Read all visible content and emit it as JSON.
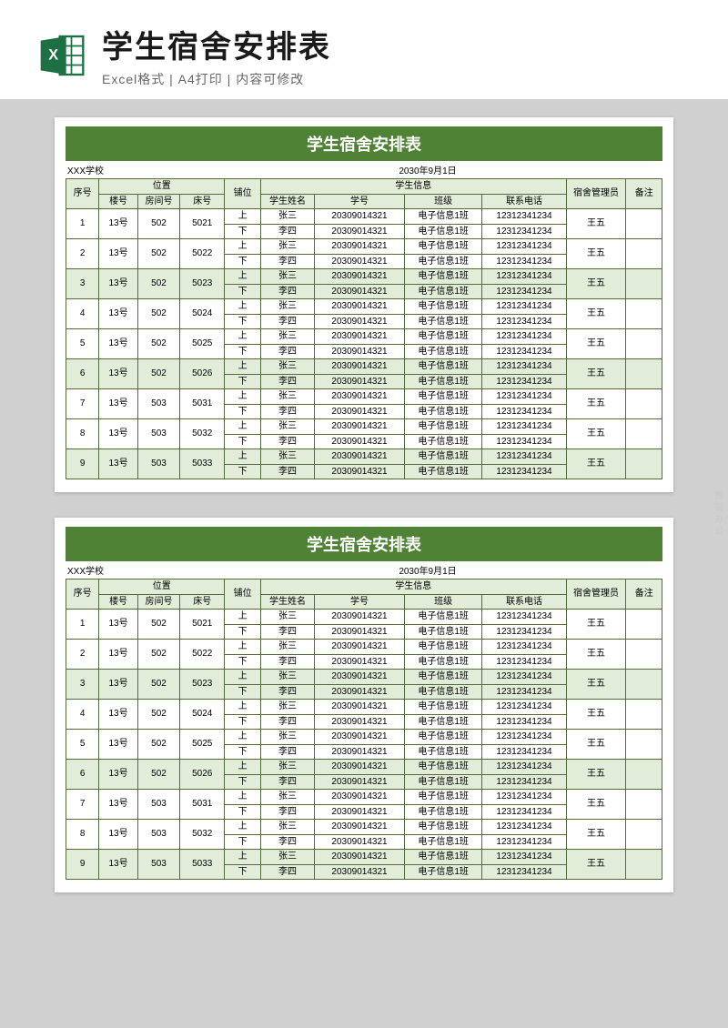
{
  "header": {
    "main_title": "学生宿舍安排表",
    "sub_title": "Excel格式 | A4打印 | 内容可修改"
  },
  "colors": {
    "title_bar_bg": "#4f8235",
    "header_cell_bg": "#e1edd8",
    "border": "#556b3e",
    "page_bg": "#d0d0d0",
    "doc_bg": "#ffffff",
    "excel_icon": "#1d7044"
  },
  "doc": {
    "title": "学生宿舍安排表",
    "school": "XXX学校",
    "date": "2030年9月1日",
    "columns": {
      "seq": "序号",
      "location_group": "位置",
      "building": "楼号",
      "room": "房间号",
      "bed": "床号",
      "bunk": "铺位",
      "student_group": "学生信息",
      "name": "学生姓名",
      "sid": "学号",
      "class": "班级",
      "phone": "联系电话",
      "manager": "宿舍管理员",
      "note": "备注"
    },
    "rows": [
      {
        "seq": 1,
        "building": "13号",
        "room": "502",
        "bed": "5021",
        "top": {
          "bunk": "上",
          "name": "张三",
          "sid": "20309014321",
          "class": "电子信息1班",
          "phone": "12312341234"
        },
        "bot": {
          "bunk": "下",
          "name": "李四",
          "sid": "20309014321",
          "class": "电子信息1班",
          "phone": "12312341234"
        },
        "manager": "王五",
        "alt": false
      },
      {
        "seq": 2,
        "building": "13号",
        "room": "502",
        "bed": "5022",
        "top": {
          "bunk": "上",
          "name": "张三",
          "sid": "20309014321",
          "class": "电子信息1班",
          "phone": "12312341234"
        },
        "bot": {
          "bunk": "下",
          "name": "李四",
          "sid": "20309014321",
          "class": "电子信息1班",
          "phone": "12312341234"
        },
        "manager": "王五",
        "alt": false
      },
      {
        "seq": 3,
        "building": "13号",
        "room": "502",
        "bed": "5023",
        "top": {
          "bunk": "上",
          "name": "张三",
          "sid": "20309014321",
          "class": "电子信息1班",
          "phone": "12312341234"
        },
        "bot": {
          "bunk": "下",
          "name": "李四",
          "sid": "20309014321",
          "class": "电子信息1班",
          "phone": "12312341234"
        },
        "manager": "王五",
        "alt": true
      },
      {
        "seq": 4,
        "building": "13号",
        "room": "502",
        "bed": "5024",
        "top": {
          "bunk": "上",
          "name": "张三",
          "sid": "20309014321",
          "class": "电子信息1班",
          "phone": "12312341234"
        },
        "bot": {
          "bunk": "下",
          "name": "李四",
          "sid": "20309014321",
          "class": "电子信息1班",
          "phone": "12312341234"
        },
        "manager": "王五",
        "alt": false
      },
      {
        "seq": 5,
        "building": "13号",
        "room": "502",
        "bed": "5025",
        "top": {
          "bunk": "上",
          "name": "张三",
          "sid": "20309014321",
          "class": "电子信息1班",
          "phone": "12312341234"
        },
        "bot": {
          "bunk": "下",
          "name": "李四",
          "sid": "20309014321",
          "class": "电子信息1班",
          "phone": "12312341234"
        },
        "manager": "王五",
        "alt": false
      },
      {
        "seq": 6,
        "building": "13号",
        "room": "502",
        "bed": "5026",
        "top": {
          "bunk": "上",
          "name": "张三",
          "sid": "20309014321",
          "class": "电子信息1班",
          "phone": "12312341234"
        },
        "bot": {
          "bunk": "下",
          "name": "李四",
          "sid": "20309014321",
          "class": "电子信息1班",
          "phone": "12312341234"
        },
        "manager": "王五",
        "alt": true
      },
      {
        "seq": 7,
        "building": "13号",
        "room": "503",
        "bed": "5031",
        "top": {
          "bunk": "上",
          "name": "张三",
          "sid": "20309014321",
          "class": "电子信息1班",
          "phone": "12312341234"
        },
        "bot": {
          "bunk": "下",
          "name": "李四",
          "sid": "20309014321",
          "class": "电子信息1班",
          "phone": "12312341234"
        },
        "manager": "王五",
        "alt": false
      },
      {
        "seq": 8,
        "building": "13号",
        "room": "503",
        "bed": "5032",
        "top": {
          "bunk": "上",
          "name": "张三",
          "sid": "20309014321",
          "class": "电子信息1班",
          "phone": "12312341234"
        },
        "bot": {
          "bunk": "下",
          "name": "李四",
          "sid": "20309014321",
          "class": "电子信息1班",
          "phone": "12312341234"
        },
        "manager": "王五",
        "alt": false
      },
      {
        "seq": 9,
        "building": "13号",
        "room": "503",
        "bed": "5033",
        "top": {
          "bunk": "上",
          "name": "张三",
          "sid": "20309014321",
          "class": "电子信息1班",
          "phone": "12312341234"
        },
        "bot": {
          "bunk": "下",
          "name": "李四",
          "sid": "20309014321",
          "class": "电子信息1班",
          "phone": "12312341234"
        },
        "manager": "王五",
        "alt": true
      }
    ]
  },
  "watermark": "熊猫办公"
}
